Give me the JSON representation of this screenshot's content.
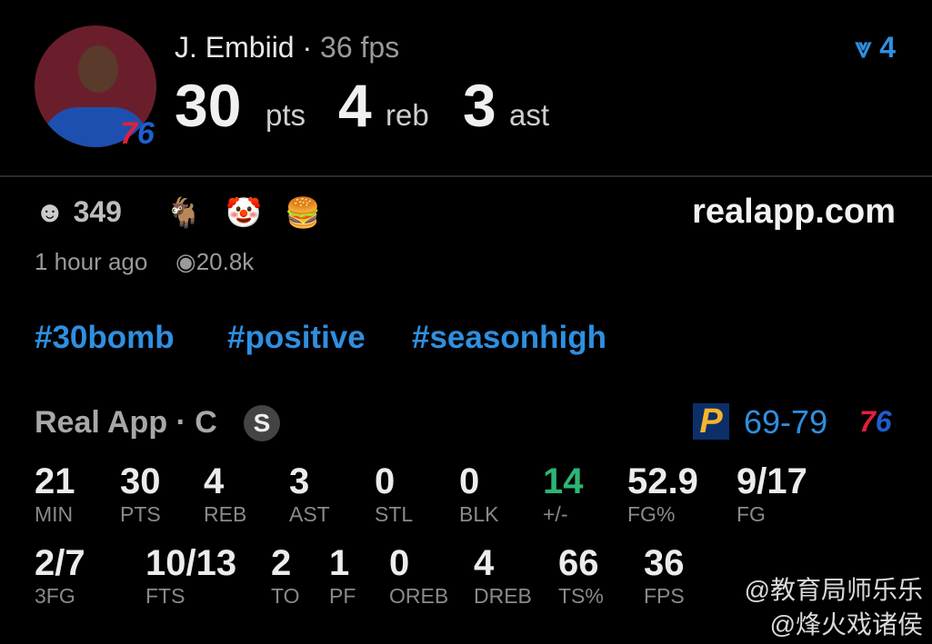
{
  "player": {
    "name": "J. Embiid",
    "fps": "36 fps",
    "team_logo": "76",
    "avatar": "player-headshot"
  },
  "headline": [
    {
      "value": "30",
      "unit": "pts"
    },
    {
      "value": "4",
      "unit": "reb"
    },
    {
      "value": "3",
      "unit": "ast"
    }
  ],
  "rank": {
    "icon": "rank-arrow-icon",
    "value": "4"
  },
  "reactions": {
    "smiley_count": "349",
    "emojis": [
      "🐐",
      "🤡",
      "🍔"
    ]
  },
  "site": "realapp.com",
  "meta": {
    "time": "1 hour ago",
    "views": "20.8k"
  },
  "hashtags": [
    "#30bomb",
    "#positive",
    "#seasonhigh"
  ],
  "source": {
    "label": "Real App · C",
    "badge": "S"
  },
  "game": {
    "home_logo": "P",
    "score_a": "69",
    "score_b": "79",
    "away_logo": "76"
  },
  "stats_row1": [
    {
      "v": "21",
      "l": "MIN"
    },
    {
      "v": "30",
      "l": "PTS"
    },
    {
      "v": "4",
      "l": "REB"
    },
    {
      "v": "3",
      "l": "AST"
    },
    {
      "v": "0",
      "l": "STL"
    },
    {
      "v": "0",
      "l": "BLK"
    },
    {
      "v": "14",
      "l": "+/-"
    },
    {
      "v": "52.9",
      "l": "FG%"
    },
    {
      "v": "9/17",
      "l": "FG"
    }
  ],
  "stats_row2": [
    {
      "v": "2/7",
      "l": "3FG"
    },
    {
      "v": "10/13",
      "l": "FTS"
    },
    {
      "v": "2",
      "l": "TO"
    },
    {
      "v": "1",
      "l": "PF"
    },
    {
      "v": "0",
      "l": "OREB"
    },
    {
      "v": "4",
      "l": "DREB"
    },
    {
      "v": "66",
      "l": "TS%"
    },
    {
      "v": "36",
      "l": "FPS"
    }
  ],
  "colors": {
    "accent": "#2f8fe0",
    "positive": "#2bb673",
    "bg": "#000000"
  },
  "watermark": [
    "@教育局师乐乐",
    "@烽火戏诸侯"
  ]
}
